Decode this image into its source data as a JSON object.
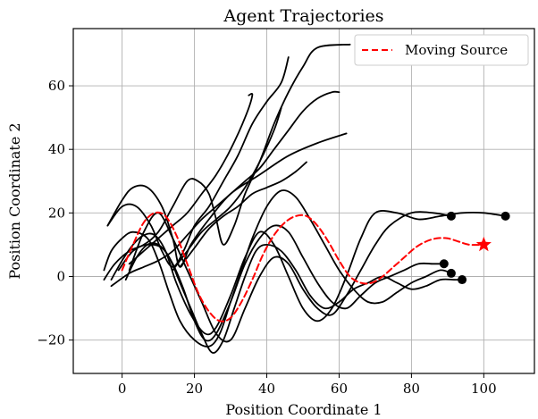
{
  "chart_data": {
    "type": "line",
    "title": "Agent Trajectories",
    "xlabel": "Position Coordinate 1",
    "ylabel": "Position Coordinate 2",
    "xlim": [
      -13.5,
      114
    ],
    "ylim": [
      -30.5,
      78
    ],
    "xticks": [
      0,
      20,
      40,
      60,
      80,
      100
    ],
    "yticks": [
      -20,
      0,
      20,
      40,
      60
    ],
    "grid": true,
    "legend": {
      "position": "top-right",
      "entries": [
        "Moving Source"
      ]
    },
    "colors": {
      "agent": "#000000",
      "source": "#ff0000",
      "grid": "#b0b0b0"
    },
    "agent_end_marker": "circle",
    "source_end_marker": "star",
    "series": [
      {
        "points": [
          [
            2,
            2
          ],
          [
            6,
            14
          ],
          [
            10,
            20
          ],
          [
            14,
            12
          ],
          [
            18,
            2
          ],
          [
            22,
            -8
          ],
          [
            26,
            -18
          ],
          [
            30,
            -20
          ],
          [
            34,
            -10
          ],
          [
            38,
            0
          ],
          [
            42,
            6
          ],
          [
            46,
            4
          ],
          [
            50,
            -4
          ],
          [
            54,
            -10
          ],
          [
            58,
            -12
          ],
          [
            62,
            -6
          ],
          [
            66,
            2
          ],
          [
            70,
            10
          ],
          [
            74,
            16
          ],
          [
            80,
            20
          ],
          [
            86,
            20
          ],
          [
            91,
            19
          ]
        ]
      },
      {
        "points": [
          [
            -4,
            16
          ],
          [
            0,
            24
          ],
          [
            3,
            28
          ],
          [
            7,
            28
          ],
          [
            11,
            22
          ],
          [
            14,
            12
          ],
          [
            16,
            3
          ],
          [
            19,
            10
          ],
          [
            24,
            18
          ],
          [
            30,
            26
          ],
          [
            38,
            32
          ],
          [
            46,
            38
          ],
          [
            54,
            42
          ],
          [
            62,
            45
          ]
        ],
        "comment_free": true
      },
      {
        "points": [
          [
            -3,
            -1
          ],
          [
            0,
            5
          ],
          [
            3,
            10
          ],
          [
            6,
            13
          ],
          [
            9,
            13
          ],
          [
            12,
            8
          ],
          [
            15,
            -2
          ],
          [
            19,
            -12
          ],
          [
            23,
            -18
          ],
          [
            26,
            -16
          ],
          [
            30,
            -6
          ],
          [
            34,
            6
          ],
          [
            38,
            14
          ],
          [
            42,
            10
          ],
          [
            46,
            0
          ],
          [
            50,
            -10
          ],
          [
            54,
            -14
          ],
          [
            58,
            -10
          ],
          [
            62,
            0
          ],
          [
            66,
            12
          ],
          [
            70,
            20
          ],
          [
            76,
            20
          ],
          [
            82,
            18
          ],
          [
            88,
            19
          ],
          [
            94,
            20
          ],
          [
            100,
            20
          ],
          [
            106,
            19
          ]
        ]
      },
      {
        "points": [
          [
            -3,
            -3
          ],
          [
            2,
            1
          ],
          [
            6,
            3
          ],
          [
            10,
            5
          ],
          [
            14,
            8
          ],
          [
            18,
            13
          ],
          [
            22,
            18
          ],
          [
            26,
            22
          ],
          [
            30,
            26
          ],
          [
            34,
            30
          ],
          [
            38,
            34
          ],
          [
            42,
            40
          ],
          [
            46,
            46
          ],
          [
            50,
            52
          ],
          [
            54,
            56
          ],
          [
            58,
            58
          ],
          [
            60,
            58
          ]
        ]
      },
      {
        "points": [
          [
            -1,
            2
          ],
          [
            3,
            8
          ],
          [
            7,
            10
          ],
          [
            11,
            9
          ],
          [
            14,
            4
          ],
          [
            17,
            -4
          ],
          [
            20,
            -14
          ],
          [
            23,
            -20
          ],
          [
            26,
            -18
          ],
          [
            30,
            -8
          ],
          [
            34,
            4
          ],
          [
            38,
            12
          ],
          [
            42,
            16
          ],
          [
            46,
            14
          ],
          [
            50,
            6
          ],
          [
            54,
            -2
          ],
          [
            58,
            -8
          ],
          [
            62,
            -10
          ],
          [
            66,
            -6
          ],
          [
            70,
            -2
          ],
          [
            74,
            0
          ],
          [
            78,
            2
          ],
          [
            82,
            4
          ],
          [
            86,
            4
          ],
          [
            89,
            4
          ]
        ]
      },
      {
        "points": [
          [
            -5,
            2
          ],
          [
            -3,
            8
          ],
          [
            0,
            12
          ],
          [
            3,
            14
          ],
          [
            7,
            12
          ],
          [
            10,
            5
          ],
          [
            13,
            -5
          ],
          [
            16,
            -14
          ],
          [
            20,
            -20
          ],
          [
            24,
            -22
          ],
          [
            27,
            -18
          ],
          [
            30,
            -8
          ],
          [
            33,
            2
          ],
          [
            36,
            12
          ],
          [
            40,
            22
          ],
          [
            44,
            27
          ],
          [
            48,
            25
          ],
          [
            52,
            18
          ],
          [
            56,
            10
          ],
          [
            60,
            2
          ],
          [
            64,
            -4
          ],
          [
            68,
            -8
          ],
          [
            72,
            -8
          ],
          [
            76,
            -5
          ],
          [
            80,
            -2
          ],
          [
            84,
            0
          ],
          [
            88,
            2
          ],
          [
            91,
            1
          ]
        ]
      },
      {
        "points": [
          [
            1,
            -1
          ],
          [
            4,
            6
          ],
          [
            7,
            10
          ],
          [
            10,
            10
          ],
          [
            13,
            6
          ],
          [
            16,
            -2
          ],
          [
            19,
            -10
          ],
          [
            22,
            -18
          ],
          [
            25,
            -24
          ],
          [
            28,
            -20
          ],
          [
            31,
            -10
          ],
          [
            34,
            0
          ],
          [
            37,
            8
          ],
          [
            40,
            10
          ],
          [
            44,
            8
          ],
          [
            48,
            2
          ],
          [
            52,
            -6
          ],
          [
            56,
            -10
          ],
          [
            60,
            -8
          ],
          [
            64,
            -4
          ],
          [
            68,
            -2
          ],
          [
            72,
            0
          ],
          [
            76,
            -2
          ],
          [
            80,
            -4
          ],
          [
            84,
            -3
          ],
          [
            88,
            -1
          ],
          [
            92,
            -1
          ],
          [
            94,
            -1
          ]
        ]
      },
      {
        "points": [
          [
            -5,
            -1
          ],
          [
            -2,
            4
          ],
          [
            2,
            8
          ],
          [
            6,
            10
          ],
          [
            10,
            14
          ],
          [
            14,
            22
          ],
          [
            18,
            30
          ],
          [
            21,
            30
          ],
          [
            24,
            26
          ],
          [
            26,
            18
          ],
          [
            28,
            10
          ],
          [
            31,
            16
          ],
          [
            34,
            26
          ],
          [
            38,
            36
          ],
          [
            42,
            48
          ],
          [
            46,
            58
          ],
          [
            50,
            66
          ],
          [
            54,
            72
          ],
          [
            63,
            73
          ]
        ]
      },
      {
        "points": [
          [
            -4,
            16
          ],
          [
            0,
            22
          ],
          [
            4,
            22
          ],
          [
            8,
            16
          ],
          [
            11,
            8
          ],
          [
            14,
            3
          ],
          [
            17,
            8
          ],
          [
            20,
            16
          ],
          [
            24,
            22
          ],
          [
            28,
            30
          ],
          [
            32,
            38
          ],
          [
            36,
            48
          ],
          [
            40,
            55
          ],
          [
            44,
            61
          ],
          [
            46,
            69
          ]
        ]
      },
      {
        "points": [
          [
            14,
            2
          ],
          [
            18,
            8
          ],
          [
            22,
            14
          ],
          [
            26,
            18
          ],
          [
            30,
            22
          ],
          [
            34,
            28
          ],
          [
            38,
            36
          ],
          [
            42,
            46
          ],
          [
            44,
            53
          ]
        ]
      },
      {
        "points": [
          [
            16,
            3
          ],
          [
            20,
            9
          ],
          [
            24,
            15
          ],
          [
            28,
            19
          ],
          [
            32,
            22
          ],
          [
            36,
            26
          ],
          [
            40,
            28
          ],
          [
            44,
            30
          ],
          [
            48,
            33
          ],
          [
            51,
            36
          ]
        ]
      },
      {
        "points": [
          [
            2,
            4
          ],
          [
            6,
            8
          ],
          [
            10,
            12
          ],
          [
            14,
            16
          ],
          [
            18,
            20
          ],
          [
            22,
            26
          ],
          [
            26,
            32
          ],
          [
            30,
            40
          ],
          [
            34,
            50
          ],
          [
            36,
            57
          ],
          [
            35,
            57
          ]
        ]
      },
      {
        "name": "Moving Source",
        "points": [
          [
            0,
            2
          ],
          [
            3,
            10
          ],
          [
            6,
            17
          ],
          [
            9,
            20
          ],
          [
            12,
            19
          ],
          [
            15,
            13
          ],
          [
            18,
            4
          ],
          [
            21,
            -5
          ],
          [
            24,
            -11
          ],
          [
            27,
            -14
          ],
          [
            30,
            -13
          ],
          [
            33,
            -8
          ],
          [
            36,
            -1
          ],
          [
            39,
            7
          ],
          [
            42,
            13
          ],
          [
            45,
            17
          ],
          [
            48,
            19
          ],
          [
            51,
            19
          ],
          [
            54,
            16
          ],
          [
            57,
            11
          ],
          [
            60,
            5
          ],
          [
            63,
            0
          ],
          [
            66,
            -2
          ],
          [
            69,
            -2
          ],
          [
            72,
            0
          ],
          [
            75,
            3
          ],
          [
            78,
            6
          ],
          [
            81,
            9
          ],
          [
            84,
            11
          ],
          [
            87,
            12
          ],
          [
            90,
            12
          ],
          [
            93,
            11
          ],
          [
            96,
            10
          ],
          [
            100,
            10
          ]
        ]
      }
    ]
  }
}
